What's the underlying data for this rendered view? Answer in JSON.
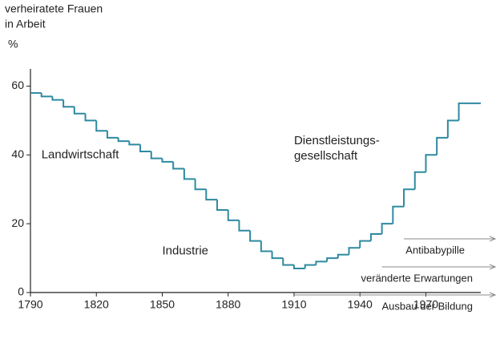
{
  "chart_data": {
    "type": "step",
    "y_axis_label": [
      "verheiratete Frauen",
      "in Arbeit"
    ],
    "y_unit": "%",
    "x": [
      1790,
      1795,
      1800,
      1805,
      1810,
      1815,
      1820,
      1825,
      1830,
      1835,
      1840,
      1845,
      1850,
      1855,
      1860,
      1865,
      1870,
      1875,
      1880,
      1885,
      1890,
      1895,
      1900,
      1905,
      1910,
      1915,
      1920,
      1925,
      1930,
      1935,
      1940,
      1945,
      1950,
      1955,
      1960,
      1965,
      1970,
      1975,
      1980,
      1985
    ],
    "values": [
      58,
      57,
      56,
      54,
      52,
      50,
      47,
      45,
      44,
      43,
      41,
      39,
      38,
      36,
      33,
      30,
      27,
      24,
      21,
      18,
      15,
      12,
      10,
      8,
      7,
      8,
      9,
      10,
      11,
      13,
      15,
      17,
      20,
      25,
      30,
      35,
      40,
      45,
      50,
      55
    ],
    "color": "#2e8aa0",
    "xlim": [
      1790,
      1995
    ],
    "xticks": [
      1790,
      1820,
      1850,
      1880,
      1910,
      1940,
      1970
    ],
    "ylim": [
      0,
      65
    ],
    "yticks": [
      0,
      20,
      40,
      60
    ],
    "sector_labels": [
      {
        "lines": [
          "Landwirtschaft"
        ],
        "year": 1795,
        "value": 40
      },
      {
        "lines": [
          "Industrie"
        ],
        "year": 1850,
        "value": 12
      },
      {
        "lines": [
          "Dienstleistungs-",
          "gesellschaft"
        ],
        "year": 1910,
        "value": 44
      }
    ],
    "influences": [
      {
        "label": "Antibabypille",
        "start": 1960
      },
      {
        "label": "veränderte Erwartungen",
        "start": 1950
      },
      {
        "label": "Ausbau der Bildung",
        "start": 1910
      }
    ]
  }
}
